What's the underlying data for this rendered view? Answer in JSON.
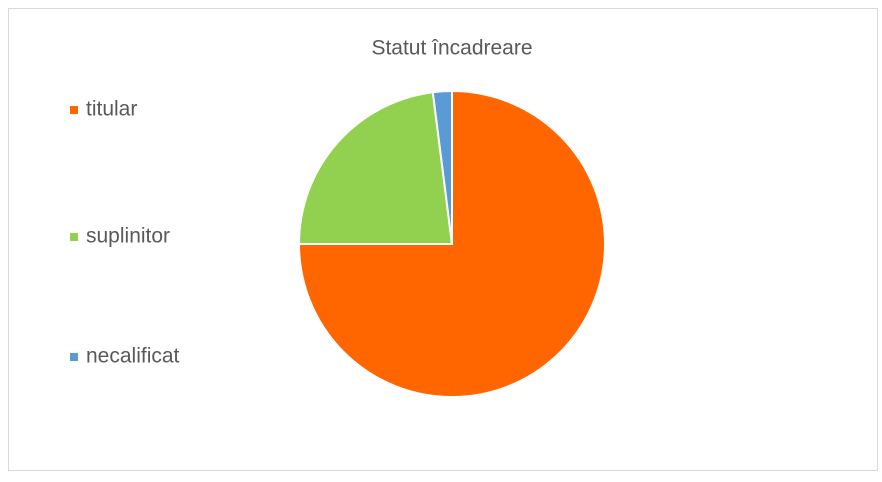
{
  "chart_data": {
    "type": "pie",
    "title": "Statut încadreare",
    "categories": [
      "titular",
      "suplinitor",
      "necalificat"
    ],
    "values": [
      75,
      23,
      2
    ],
    "colors": [
      "#ff6600",
      "#92d050",
      "#5b9bd5"
    ],
    "legend": "left"
  }
}
